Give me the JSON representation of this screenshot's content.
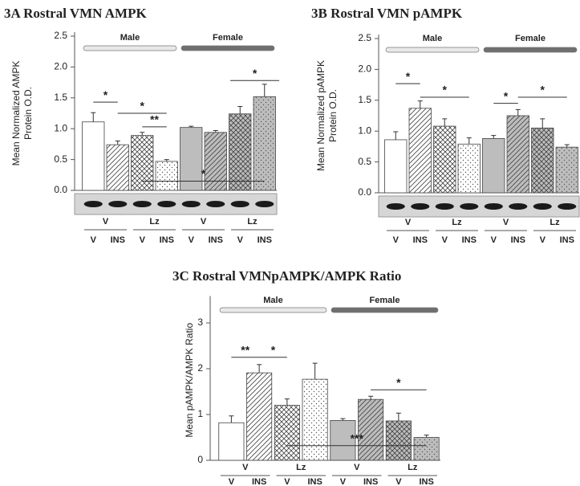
{
  "chart_data": [
    {
      "type": "bar",
      "title": "3A  Rostral VMN AMPK",
      "ylabel": [
        "Mean Normalized AMPK",
        "Protein O.D."
      ],
      "groups": [
        {
          "name": "Male",
          "color": "#e8e8e8"
        },
        {
          "name": "Female",
          "color": "#6f6f6f"
        }
      ],
      "treatments": [
        "V",
        "Lz",
        "V",
        "Lz"
      ],
      "categories": [
        "V",
        "INS",
        "V",
        "INS",
        "V",
        "INS",
        "V",
        "INS"
      ],
      "series": [
        {
          "values": [
            1.11,
            0.74,
            0.89,
            0.47,
            1.02,
            0.94,
            1.24,
            1.52
          ],
          "errors": [
            0.15,
            0.06,
            0.05,
            0.03,
            0.02,
            0.03,
            0.12,
            0.2
          ],
          "colors": [
            "#ffffff",
            "#ffffff",
            "#ffffff",
            "#ffffff",
            "#bdbdbd",
            "#bdbdbd",
            "#bdbdbd",
            "#bdbdbd"
          ]
        }
      ],
      "ylim": [
        0,
        2.5
      ],
      "yticks": [
        {
          "value": 0,
          "label": "0.0"
        },
        0.5,
        {
          "value": 1,
          "label": "1.0"
        },
        1.5,
        {
          "value": 2,
          "label": "2.0"
        },
        2.5
      ],
      "annotations": [
        "*",
        "*",
        "**",
        "*",
        "*"
      ]
    },
    {
      "type": "bar",
      "title": "3B  Rostral VMN pAMPK",
      "ylabel": [
        "Mean Normalized pAMPK",
        "Protein O.D."
      ],
      "groups": [
        {
          "name": "Male",
          "color": "#e8e8e8"
        },
        {
          "name": "Female",
          "color": "#6f6f6f"
        }
      ],
      "treatments": [
        "V",
        "Lz",
        "V",
        "Lz"
      ],
      "categories": [
        "V",
        "INS",
        "V",
        "INS",
        "V",
        "INS",
        "V",
        "INS"
      ],
      "series": [
        {
          "values": [
            0.86,
            1.37,
            1.08,
            0.79,
            0.88,
            1.25,
            1.05,
            0.74
          ],
          "errors": [
            0.13,
            0.12,
            0.12,
            0.1,
            0.05,
            0.1,
            0.15,
            0.04
          ],
          "colors": [
            "#ffffff",
            "#ffffff",
            "#ffffff",
            "#ffffff",
            "#bdbdbd",
            "#bdbdbd",
            "#bdbdbd",
            "#bdbdbd"
          ]
        }
      ],
      "ylim": [
        0,
        2.5
      ],
      "yticks": [
        {
          "value": 0,
          "label": "0.0"
        },
        0.5,
        {
          "value": 1,
          "label": "1.0"
        },
        1.5,
        {
          "value": 2,
          "label": "2.0"
        },
        2.5
      ],
      "annotations": [
        "*",
        "*",
        "*",
        "*"
      ]
    },
    {
      "type": "bar",
      "title": "3C  Rostral VMNpAMPK/AMPK Ratio",
      "ylabel": [
        "Mean pAMPK/AMPK Ratio"
      ],
      "groups": [
        {
          "name": "Male",
          "color": "#e8e8e8"
        },
        {
          "name": "Female",
          "color": "#6f6f6f"
        }
      ],
      "treatments": [
        "V",
        "Lz",
        "V",
        "Lz"
      ],
      "categories": [
        "V",
        "INS",
        "V",
        "INS",
        "V",
        "INS",
        "V",
        "INS"
      ],
      "series": [
        {
          "values": [
            0.82,
            1.91,
            1.2,
            1.77,
            0.87,
            1.33,
            0.86,
            0.5
          ],
          "errors": [
            0.15,
            0.18,
            0.14,
            0.35,
            0.04,
            0.07,
            0.17,
            0.05
          ],
          "colors": [
            "#ffffff",
            "#ffffff",
            "#ffffff",
            "#ffffff",
            "#bdbdbd",
            "#bdbdbd",
            "#bdbdbd",
            "#bdbdbd"
          ]
        }
      ],
      "ylim": [
        0,
        3.5
      ],
      "yticks": [
        0,
        1,
        2,
        3
      ],
      "annotations": [
        "**",
        "*",
        "*",
        "***"
      ]
    }
  ]
}
